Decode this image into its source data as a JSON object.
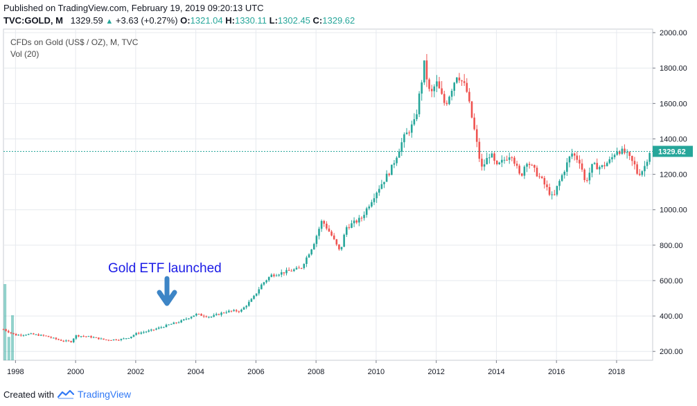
{
  "header": {
    "published": "Published on TradingView.com, February 19, 2019 09:20:13 UTC",
    "symbol": "TVC:GOLD, M",
    "last": "1329.59",
    "change": "+3.63 (+0.27%)",
    "o_label": "O:",
    "o_value": "1321.04",
    "h_label": "H:",
    "h_value": "1330.11",
    "l_label": "L:",
    "l_value": "1302.45",
    "c_label": "C:",
    "c_value": "1329.62"
  },
  "legend": {
    "title": "CFDs on Gold (US$ / OZ), M, TVC",
    "volume": "Vol (20)"
  },
  "price_label": "1329.62",
  "annotation": "Gold ETF launched",
  "footer": {
    "created_with": "Created with",
    "brand": "TradingView"
  },
  "colors": {
    "up": "#26a69a",
    "down": "#ef5350",
    "annotation": "#1a1ae6",
    "arrow": "#3d85c6",
    "grid": "#e6e9ee"
  },
  "chart_data": {
    "type": "candlestick",
    "x_ticks": [
      "1998",
      "2000",
      "2002",
      "2004",
      "2006",
      "2008",
      "2010",
      "2012",
      "2014",
      "2016",
      "2018"
    ],
    "y_ticks": [
      "200.00",
      "400.00",
      "600.00",
      "800.00",
      "1000.00",
      "1200.00",
      "1400.00",
      "1600.00",
      "1800.00",
      "2000.00"
    ],
    "ylim": [
      150,
      2020
    ],
    "x_range": [
      1997.6,
      2019.2
    ],
    "current_price": 1329.62,
    "close_path": [
      [
        1997.6,
        325
      ],
      [
        1998.0,
        292
      ],
      [
        1998.5,
        298
      ],
      [
        1999.0,
        287
      ],
      [
        1999.5,
        262
      ],
      [
        1999.85,
        255
      ],
      [
        2000.0,
        290
      ],
      [
        2000.5,
        282
      ],
      [
        2001.0,
        265
      ],
      [
        2001.5,
        268
      ],
      [
        2001.8,
        280
      ],
      [
        2002.0,
        300
      ],
      [
        2002.5,
        318
      ],
      [
        2003.0,
        345
      ],
      [
        2003.5,
        370
      ],
      [
        2004.0,
        410
      ],
      [
        2004.5,
        395
      ],
      [
        2005.0,
        425
      ],
      [
        2005.5,
        430
      ],
      [
        2005.9,
        500
      ],
      [
        2006.2,
        580
      ],
      [
        2006.5,
        630
      ],
      [
        2007.0,
        650
      ],
      [
        2007.5,
        670
      ],
      [
        2007.9,
        800
      ],
      [
        2008.2,
        940
      ],
      [
        2008.5,
        860
      ],
      [
        2008.8,
        760
      ],
      [
        2009.0,
        900
      ],
      [
        2009.5,
        950
      ],
      [
        2010.0,
        1100
      ],
      [
        2010.5,
        1230
      ],
      [
        2010.9,
        1400
      ],
      [
        2011.3,
        1500
      ],
      [
        2011.6,
        1820
      ],
      [
        2011.8,
        1640
      ],
      [
        2012.0,
        1720
      ],
      [
        2012.3,
        1590
      ],
      [
        2012.7,
        1770
      ],
      [
        2013.0,
        1680
      ],
      [
        2013.3,
        1420
      ],
      [
        2013.5,
        1230
      ],
      [
        2013.8,
        1320
      ],
      [
        2014.0,
        1240
      ],
      [
        2014.5,
        1320
      ],
      [
        2014.8,
        1180
      ],
      [
        2015.0,
        1280
      ],
      [
        2015.5,
        1170
      ],
      [
        2015.9,
        1060
      ],
      [
        2016.0,
        1120
      ],
      [
        2016.5,
        1320
      ],
      [
        2016.8,
        1270
      ],
      [
        2016.95,
        1150
      ],
      [
        2017.2,
        1250
      ],
      [
        2017.5,
        1240
      ],
      [
        2017.8,
        1280
      ],
      [
        2018.0,
        1340
      ],
      [
        2018.3,
        1320
      ],
      [
        2018.6,
        1250
      ],
      [
        2018.7,
        1200
      ],
      [
        2018.9,
        1230
      ],
      [
        2019.1,
        1330
      ]
    ],
    "volume_bars": [
      [
        1997.65,
        0.88
      ],
      [
        1997.78,
        0.27
      ],
      [
        1997.9,
        0.52
      ]
    ]
  }
}
